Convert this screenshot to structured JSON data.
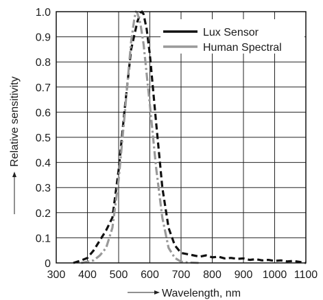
{
  "chart_data": {
    "type": "line",
    "xlabel": "Wavelength, nm",
    "ylabel": "Relative sensitivity",
    "xlim": [
      300,
      1100
    ],
    "ylim": [
      0,
      1.0
    ],
    "x_ticks": [
      300,
      400,
      500,
      600,
      700,
      800,
      900,
      1000,
      1100
    ],
    "y_ticks": [
      0,
      0.1,
      0.2,
      0.3,
      0.4,
      0.5,
      0.6,
      0.7,
      0.8,
      0.9,
      1.0
    ],
    "x_tick_labels": [
      "300",
      "400",
      "500",
      "600",
      "700",
      "800",
      "900",
      "1000",
      "1100"
    ],
    "y_tick_labels": [
      "0",
      "0.1",
      "0.2",
      "0.3",
      "0.4",
      "0.5",
      "0.6",
      "0.7",
      "0.8",
      "0.9",
      "1.0"
    ],
    "grid": true,
    "legend_position": "top-right",
    "series": [
      {
        "name": "Lux Sensor",
        "color": "#111111",
        "dash": "dashed",
        "x": [
          355,
          380,
          400,
          420,
          440,
          460,
          480,
          500,
          520,
          540,
          560,
          570,
          575,
          580,
          590,
          600,
          620,
          640,
          660,
          680,
          700,
          720,
          740,
          760,
          780,
          800,
          820,
          840,
          860,
          880,
          900,
          920,
          940,
          960,
          980,
          1000,
          1020,
          1040,
          1060,
          1080,
          1100
        ],
        "y": [
          0.0,
          0.01,
          0.02,
          0.05,
          0.09,
          0.13,
          0.18,
          0.37,
          0.62,
          0.85,
          0.96,
          0.995,
          1.0,
          0.99,
          0.93,
          0.83,
          0.56,
          0.3,
          0.14,
          0.07,
          0.04,
          0.035,
          0.03,
          0.025,
          0.03,
          0.022,
          0.025,
          0.018,
          0.02,
          0.016,
          0.018,
          0.012,
          0.015,
          0.01,
          0.012,
          0.008,
          0.01,
          0.006,
          0.008,
          0.004,
          0.0
        ]
      },
      {
        "name": "Human Spectral",
        "color": "#999999",
        "dash": "dashdot",
        "x": [
          380,
          400,
          420,
          440,
          460,
          480,
          500,
          520,
          540,
          550,
          555,
          560,
          570,
          580,
          600,
          620,
          640,
          660,
          680,
          700,
          720,
          740,
          760
        ],
        "y": [
          0.0,
          0.005,
          0.01,
          0.03,
          0.06,
          0.14,
          0.33,
          0.6,
          0.88,
          0.97,
          1.0,
          0.995,
          0.95,
          0.87,
          0.63,
          0.38,
          0.18,
          0.06,
          0.02,
          0.005,
          0.002,
          0.001,
          0.0
        ]
      }
    ]
  }
}
